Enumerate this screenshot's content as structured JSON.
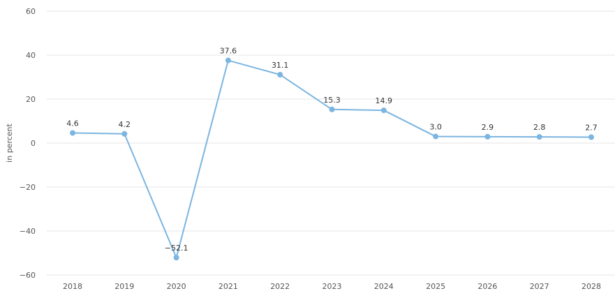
{
  "chart_data": {
    "type": "line",
    "title": "",
    "xlabel": "",
    "ylabel": "in percent",
    "ylim": [
      -60,
      60
    ],
    "yticks": [
      60,
      40,
      20,
      0,
      -20,
      -40,
      -60
    ],
    "ytick_labels": [
      "60",
      "40",
      "20",
      "0",
      "−20",
      "−40",
      "−60"
    ],
    "grid": true,
    "legend": "none",
    "categories": [
      "2018",
      "2019",
      "2020",
      "2021",
      "2022",
      "2023",
      "2024",
      "2025",
      "2026",
      "2027",
      "2028"
    ],
    "series": [
      {
        "values": [
          4.6,
          4.2,
          -52.1,
          37.6,
          31.1,
          15.3,
          14.9,
          3.0,
          2.9,
          2.8,
          2.7
        ],
        "labels": [
          "4.6",
          "4.2",
          "−52.1",
          "37.6",
          "31.1",
          "15.3",
          "14.9",
          "3.0",
          "2.9",
          "2.8",
          "2.7"
        ],
        "color": "#7cb5e0"
      }
    ]
  }
}
